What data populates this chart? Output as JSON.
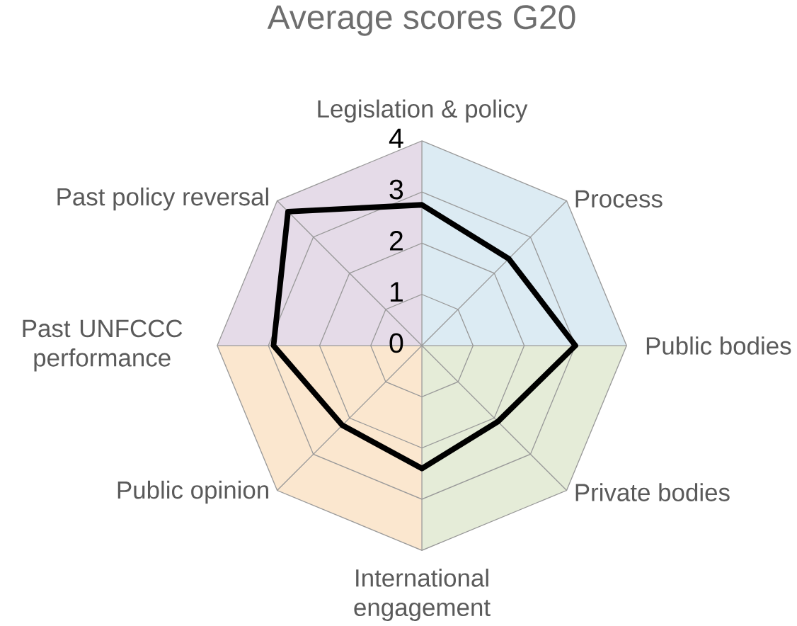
{
  "chart_data": {
    "type": "radar",
    "title": "Average scores G20",
    "categories": [
      "Legislation & policy",
      "Process",
      "Public bodies",
      "Private bodies",
      "International engagement",
      "Public opinion",
      "Past UNFCCC performance",
      "Past policy reversal"
    ],
    "series": [
      {
        "color": "#000000",
        "values": [
          2.75,
          2.4,
          3.0,
          2.1,
          2.4,
          2.2,
          2.9,
          3.7
        ]
      }
    ],
    "ylim": [
      0,
      4
    ],
    "yticks": [
      0,
      1,
      2,
      3,
      4
    ],
    "grid": true
  }
}
